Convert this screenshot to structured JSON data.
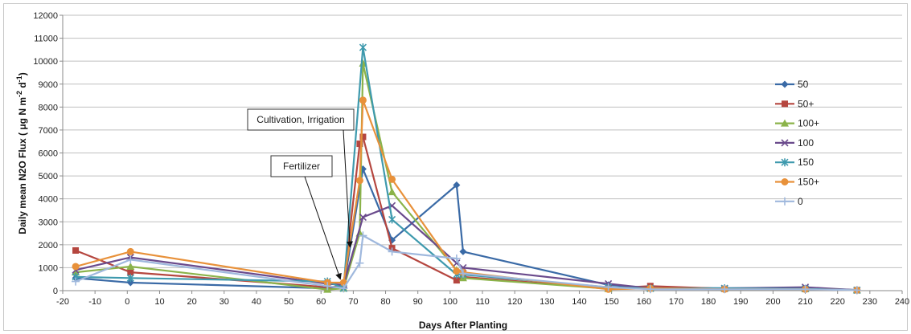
{
  "chart_data": {
    "type": "line",
    "xlabel": "Days After Planting",
    "ylabel_parts": {
      "main": "Daily mean N2O Flux ( μg N m",
      "sup1": "-2",
      "mid": " d",
      "sup2": "-1",
      "end": ")"
    },
    "xlim": [
      -20,
      240
    ],
    "ylim": [
      0,
      12000
    ],
    "xticks": [
      -20,
      -10,
      0,
      10,
      20,
      30,
      40,
      50,
      60,
      70,
      80,
      90,
      100,
      110,
      120,
      130,
      140,
      150,
      160,
      170,
      180,
      190,
      200,
      210,
      220,
      230,
      240
    ],
    "yticks": [
      0,
      1000,
      2000,
      3000,
      4000,
      5000,
      6000,
      7000,
      8000,
      9000,
      10000,
      11000,
      12000
    ],
    "grid": "horizontal",
    "legend_position": "right",
    "annotations": [
      {
        "label": "Cultivation, Irrigation",
        "target_x": 69,
        "target_y": 1900
      },
      {
        "label": "Fertilizer",
        "target_x": 66,
        "target_y": 500
      }
    ],
    "series": [
      {
        "name": "50",
        "color": "#3a6aa6",
        "marker": "diamond",
        "points": [
          [
            -16,
            550
          ],
          [
            1,
            350
          ],
          [
            62,
            100
          ],
          [
            67,
            150
          ],
          [
            73,
            5300
          ],
          [
            82,
            2200
          ],
          [
            102,
            4600
          ],
          [
            104,
            1700
          ],
          [
            149,
            250
          ],
          [
            162,
            120
          ],
          [
            210,
            100
          ],
          [
            226,
            30
          ]
        ]
      },
      {
        "name": "50+",
        "color": "#b5463f",
        "marker": "square",
        "points": [
          [
            -16,
            1750
          ],
          [
            1,
            800
          ],
          [
            62,
            150
          ],
          [
            67,
            200
          ],
          [
            72,
            6400
          ],
          [
            73,
            6700
          ],
          [
            82,
            1850
          ],
          [
            102,
            450
          ],
          [
            104,
            600
          ],
          [
            149,
            100
          ],
          [
            162,
            200
          ],
          [
            185,
            80
          ],
          [
            210,
            80
          ],
          [
            226,
            20
          ]
        ]
      },
      {
        "name": "100+",
        "color": "#8bb34a",
        "marker": "triangle",
        "points": [
          [
            -16,
            800
          ],
          [
            1,
            1050
          ],
          [
            62,
            50
          ],
          [
            67,
            100
          ],
          [
            72,
            2500
          ],
          [
            73,
            9900
          ],
          [
            82,
            4300
          ],
          [
            102,
            900
          ],
          [
            104,
            550
          ],
          [
            149,
            80
          ],
          [
            162,
            100
          ],
          [
            185,
            100
          ],
          [
            210,
            80
          ],
          [
            226,
            20
          ]
        ]
      },
      {
        "name": "100",
        "color": "#6a4a8c",
        "marker": "x",
        "points": [
          [
            -16,
            900
          ],
          [
            1,
            1450
          ],
          [
            62,
            300
          ],
          [
            67,
            250
          ],
          [
            73,
            3200
          ],
          [
            82,
            3700
          ],
          [
            102,
            1200
          ],
          [
            104,
            1000
          ],
          [
            149,
            300
          ],
          [
            162,
            100
          ],
          [
            185,
            100
          ],
          [
            210,
            150
          ],
          [
            226,
            20
          ]
        ]
      },
      {
        "name": "150",
        "color": "#3f9aae",
        "marker": "asterisk",
        "points": [
          [
            -16,
            600
          ],
          [
            1,
            550
          ],
          [
            62,
            400
          ],
          [
            67,
            100
          ],
          [
            73,
            10600
          ],
          [
            82,
            3100
          ],
          [
            102,
            700
          ],
          [
            104,
            700
          ],
          [
            149,
            150
          ],
          [
            162,
            100
          ],
          [
            185,
            100
          ],
          [
            210,
            80
          ],
          [
            226,
            20
          ]
        ]
      },
      {
        "name": "150+",
        "color": "#e8913a",
        "marker": "circle",
        "points": [
          [
            -16,
            1050
          ],
          [
            1,
            1700
          ],
          [
            62,
            350
          ],
          [
            67,
            350
          ],
          [
            72,
            4800
          ],
          [
            73,
            8300
          ],
          [
            82,
            4850
          ],
          [
            102,
            850
          ],
          [
            104,
            800
          ],
          [
            149,
            60
          ],
          [
            162,
            100
          ],
          [
            185,
            60
          ],
          [
            210,
            60
          ],
          [
            226,
            20
          ]
        ]
      },
      {
        "name": "0",
        "color": "#9fb8dd",
        "marker": "plus",
        "points": [
          [
            -16,
            400
          ],
          [
            1,
            1350
          ],
          [
            62,
            200
          ],
          [
            67,
            100
          ],
          [
            72,
            1200
          ],
          [
            73,
            2400
          ],
          [
            82,
            1700
          ],
          [
            102,
            1400
          ],
          [
            104,
            750
          ],
          [
            149,
            150
          ],
          [
            162,
            60
          ],
          [
            185,
            60
          ],
          [
            210,
            60
          ],
          [
            226,
            20
          ]
        ]
      }
    ]
  }
}
